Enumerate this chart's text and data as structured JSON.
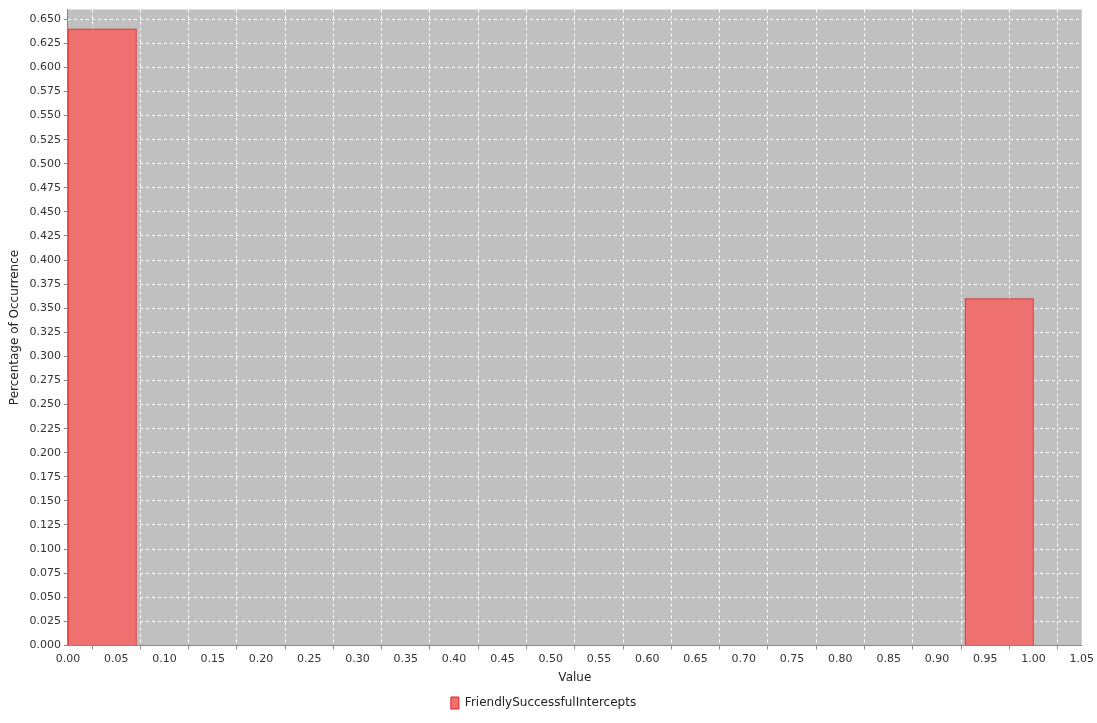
{
  "chart_data": {
    "type": "histogram",
    "xlabel": "Value",
    "ylabel": "Percentage of Occurrence",
    "bins": [
      0,
      0.071,
      0.143,
      0.214,
      0.286,
      0.357,
      0.429,
      0.5,
      0.571,
      0.643,
      0.714,
      0.786,
      0.857,
      0.929,
      1
    ],
    "series": [
      {
        "name": "FriendlySuccessfulIntercepts",
        "color": "#ee7070",
        "values": [
          0.64,
          0,
          0,
          0,
          0,
          0,
          0,
          0,
          0,
          0,
          0,
          0,
          0,
          0.36
        ]
      }
    ],
    "xlim": [
      0,
      1.05
    ],
    "xticks": [
      {
        "value": 0,
        "label": "0.00"
      },
      {
        "value": 0.05,
        "label": "0.05"
      },
      {
        "value": 0.1,
        "label": "0.10"
      },
      {
        "value": 0.15,
        "label": "0.15"
      },
      {
        "value": 0.2,
        "label": "0.20"
      },
      {
        "value": 0.25,
        "label": "0.25"
      },
      {
        "value": 0.3,
        "label": "0.30"
      },
      {
        "value": 0.35,
        "label": "0.35"
      },
      {
        "value": 0.4,
        "label": "0.40"
      },
      {
        "value": 0.45,
        "label": "0.45"
      },
      {
        "value": 0.5,
        "label": "0.50"
      },
      {
        "value": 0.55,
        "label": "0.55"
      },
      {
        "value": 0.6,
        "label": "0.60"
      },
      {
        "value": 0.65,
        "label": "0.65"
      },
      {
        "value": 0.7,
        "label": "0.70"
      },
      {
        "value": 0.75,
        "label": "0.75"
      },
      {
        "value": 0.8,
        "label": "0.80"
      },
      {
        "value": 0.85,
        "label": "0.85"
      },
      {
        "value": 0.9,
        "label": "0.90"
      },
      {
        "value": 0.95,
        "label": "0.95"
      },
      {
        "value": 1,
        "label": "1.00"
      },
      {
        "value": 1.05,
        "label": "1.05"
      }
    ],
    "ylim": [
      0,
      0.66
    ],
    "yticks": [
      {
        "value": 0,
        "label": "0.000"
      },
      {
        "value": 0.025,
        "label": "0.025"
      },
      {
        "value": 0.05,
        "label": "0.050"
      },
      {
        "value": 0.075,
        "label": "0.075"
      },
      {
        "value": 0.1,
        "label": "0.100"
      },
      {
        "value": 0.125,
        "label": "0.125"
      },
      {
        "value": 0.15,
        "label": "0.150"
      },
      {
        "value": 0.175,
        "label": "0.175"
      },
      {
        "value": 0.2,
        "label": "0.200"
      },
      {
        "value": 0.225,
        "label": "0.225"
      },
      {
        "value": 0.25,
        "label": "0.250"
      },
      {
        "value": 0.275,
        "label": "0.275"
      },
      {
        "value": 0.3,
        "label": "0.300"
      },
      {
        "value": 0.325,
        "label": "0.325"
      },
      {
        "value": 0.35,
        "label": "0.350"
      },
      {
        "value": 0.375,
        "label": "0.375"
      },
      {
        "value": 0.4,
        "label": "0.400"
      },
      {
        "value": 0.425,
        "label": "0.425"
      },
      {
        "value": 0.45,
        "label": "0.450"
      },
      {
        "value": 0.475,
        "label": "0.475"
      },
      {
        "value": 0.5,
        "label": "0.500"
      },
      {
        "value": 0.525,
        "label": "0.525"
      },
      {
        "value": 0.55,
        "label": "0.550"
      },
      {
        "value": 0.575,
        "label": "0.575"
      },
      {
        "value": 0.6,
        "label": "0.600"
      },
      {
        "value": 0.625,
        "label": "0.625"
      },
      {
        "value": 0.65,
        "label": "0.650"
      }
    ],
    "grid": true,
    "legend": "bottom"
  }
}
